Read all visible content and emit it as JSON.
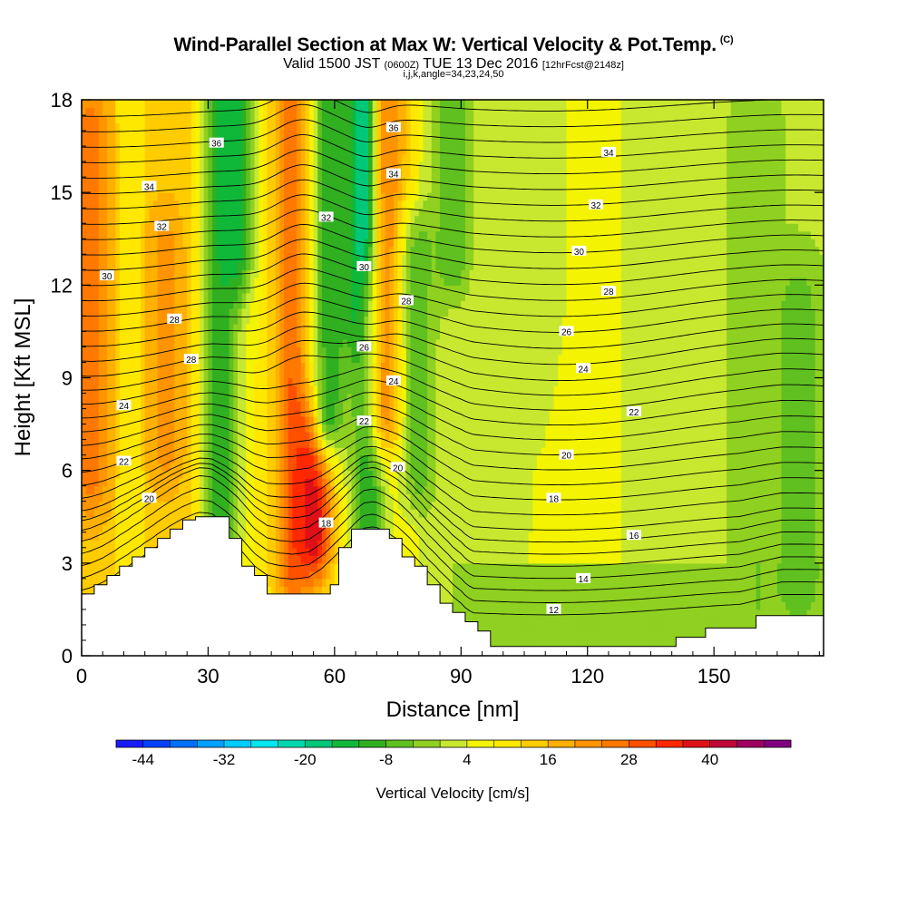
{
  "header": {
    "title": "Wind-Parallel Section at Max W: Vertical Velocity & Pot.Temp.",
    "copyright": "(C)",
    "valid_prefix": "Valid 1500 JST",
    "valid_utc": "(0600Z)",
    "valid_date": "TUE 13 Dec 2016",
    "forecast": "[12hrFcst@2148z]",
    "params": "i,j,k,angle=34,23,24,50"
  },
  "chart_data": {
    "type": "heatmap",
    "title": "Wind-Parallel Section at Max W: Vertical Velocity & Pot.Temp.",
    "xlabel": "Distance [nm]",
    "ylabel": "Height [Kft MSL]",
    "xlim": [
      0,
      176
    ],
    "ylim": [
      0,
      18
    ],
    "x_ticks": [
      0,
      30,
      60,
      90,
      120,
      150
    ],
    "y_ticks": [
      0,
      3,
      6,
      9,
      12,
      15,
      18
    ],
    "colorbar": {
      "label": "Vertical Velocity [cm/s]",
      "min": -48,
      "max": 52,
      "step": 4,
      "tick_labels": [
        -44,
        -32,
        -20,
        -8,
        4,
        16,
        28,
        40
      ],
      "colors": [
        "#1a1aff",
        "#0040ff",
        "#0070ff",
        "#00a0ff",
        "#00ccff",
        "#00e8f0",
        "#00d9b0",
        "#00c878",
        "#10b83a",
        "#30b020",
        "#60c020",
        "#8fd020",
        "#c8e830",
        "#f4f400",
        "#ffe800",
        "#ffcc00",
        "#ffb000",
        "#ff9400",
        "#ff7800",
        "#ff5000",
        "#ff2800",
        "#e01018",
        "#c00838",
        "#a00060",
        "#800080"
      ]
    },
    "velocity_features": [
      {
        "x": 2,
        "z0": 6,
        "z1": 17,
        "w": 26
      },
      {
        "x": 20,
        "z0": 7,
        "z1": 13,
        "w": 22
      },
      {
        "x": 33,
        "z0": 4,
        "z1": 18,
        "w": -10
      },
      {
        "x": 36,
        "z0": 13,
        "z1": 18,
        "w": -14
      },
      {
        "x": 50,
        "z0": 3,
        "z1": 18,
        "w": 28
      },
      {
        "x": 55,
        "z0": 4,
        "z1": 7,
        "w": 40
      },
      {
        "x": 59,
        "z0": 8,
        "z1": 18,
        "w": -10
      },
      {
        "x": 68,
        "z0": 11,
        "z1": 18,
        "w": -30
      },
      {
        "x": 68,
        "z0": 3,
        "z1": 11,
        "w": -12
      },
      {
        "x": 73,
        "z0": 8,
        "z1": 18,
        "w": 24
      },
      {
        "x": 80,
        "z0": 6,
        "z1": 13,
        "w": -6
      },
      {
        "x": 88,
        "z0": 13,
        "z1": 18,
        "w": -8
      },
      {
        "x": 160,
        "z0": 1,
        "z1": 17,
        "w": -4
      },
      {
        "x": 170,
        "z0": 3,
        "z1": 11,
        "w": -8
      }
    ],
    "terrain_top_kft": [
      [
        0,
        2.0
      ],
      [
        3,
        2.0
      ],
      [
        3,
        2.3
      ],
      [
        6,
        2.3
      ],
      [
        6,
        2.6
      ],
      [
        9,
        2.6
      ],
      [
        9,
        2.9
      ],
      [
        12,
        2.9
      ],
      [
        12,
        3.2
      ],
      [
        15,
        3.2
      ],
      [
        15,
        3.5
      ],
      [
        18,
        3.5
      ],
      [
        18,
        3.8
      ],
      [
        21,
        3.8
      ],
      [
        21,
        4.1
      ],
      [
        24,
        4.1
      ],
      [
        24,
        4.4
      ],
      [
        27,
        4.4
      ],
      [
        27,
        4.5
      ],
      [
        35,
        4.5
      ],
      [
        35,
        3.8
      ],
      [
        38,
        3.8
      ],
      [
        38,
        2.9
      ],
      [
        41,
        2.9
      ],
      [
        41,
        2.6
      ],
      [
        44,
        2.6
      ],
      [
        44,
        2.0
      ],
      [
        59,
        2.0
      ],
      [
        59,
        2.3
      ],
      [
        61,
        2.3
      ],
      [
        61,
        3.5
      ],
      [
        64,
        3.5
      ],
      [
        64,
        4.1
      ],
      [
        73,
        4.1
      ],
      [
        73,
        3.8
      ],
      [
        76,
        3.8
      ],
      [
        76,
        3.2
      ],
      [
        79,
        3.2
      ],
      [
        79,
        2.9
      ],
      [
        82,
        2.9
      ],
      [
        82,
        2.3
      ],
      [
        85,
        2.3
      ],
      [
        85,
        1.7
      ],
      [
        88,
        1.7
      ],
      [
        88,
        1.4
      ],
      [
        91,
        1.4
      ],
      [
        91,
        1.1
      ],
      [
        94,
        1.1
      ],
      [
        94,
        0.8
      ],
      [
        97,
        0.8
      ],
      [
        97,
        0.3
      ],
      [
        141,
        0.3
      ],
      [
        141,
        0.6
      ],
      [
        148,
        0.6
      ],
      [
        148,
        0.9
      ],
      [
        160,
        0.9
      ],
      [
        160,
        1.3
      ],
      [
        176,
        1.3
      ]
    ],
    "theta_contours_base_kft": [
      1.2,
      1.6,
      2.0,
      2.4,
      2.8,
      3.2,
      3.6,
      4.0,
      4.5,
      5.0,
      5.5,
      6.0,
      6.5,
      7.0,
      7.5,
      8.0,
      8.5,
      9.0,
      9.5,
      10.0,
      10.5,
      11.0,
      11.5,
      12.0,
      12.5,
      13.0,
      13.5,
      14.0,
      14.5,
      15.0,
      15.5,
      16.0,
      16.5,
      17.0,
      17.5
    ],
    "theta_labels": [
      {
        "text": "36",
        "x": 32,
        "z": 16.6
      },
      {
        "text": "36",
        "x": 74,
        "z": 17.1
      },
      {
        "text": "34",
        "x": 16,
        "z": 15.2
      },
      {
        "text": "34",
        "x": 74,
        "z": 15.6
      },
      {
        "text": "34",
        "x": 125,
        "z": 16.3
      },
      {
        "text": "32",
        "x": 19,
        "z": 13.9
      },
      {
        "text": "32",
        "x": 58,
        "z": 14.2
      },
      {
        "text": "32",
        "x": 122,
        "z": 14.6
      },
      {
        "text": "30",
        "x": 6,
        "z": 12.3
      },
      {
        "text": "30",
        "x": 67,
        "z": 12.6
      },
      {
        "text": "30",
        "x": 118,
        "z": 13.1
      },
      {
        "text": "28",
        "x": 22,
        "z": 10.9
      },
      {
        "text": "28",
        "x": 77,
        "z": 11.5
      },
      {
        "text": "28",
        "x": 125,
        "z": 11.8
      },
      {
        "text": "28",
        "x": 26,
        "z": 9.6
      },
      {
        "text": "26",
        "x": 67,
        "z": 10.0
      },
      {
        "text": "26",
        "x": 115,
        "z": 10.5
      },
      {
        "text": "24",
        "x": 10,
        "z": 8.1
      },
      {
        "text": "24",
        "x": 74,
        "z": 8.9
      },
      {
        "text": "24",
        "x": 119,
        "z": 9.3
      },
      {
        "text": "22",
        "x": 67,
        "z": 7.6
      },
      {
        "text": "22",
        "x": 131,
        "z": 7.9
      },
      {
        "text": "22",
        "x": 10,
        "z": 6.3
      },
      {
        "text": "20",
        "x": 75,
        "z": 6.1
      },
      {
        "text": "20",
        "x": 115,
        "z": 6.5
      },
      {
        "text": "20",
        "x": 16,
        "z": 5.1
      },
      {
        "text": "18",
        "x": 58,
        "z": 4.3
      },
      {
        "text": "18",
        "x": 112,
        "z": 5.1
      },
      {
        "text": "16",
        "x": 131,
        "z": 3.9
      },
      {
        "text": "14",
        "x": 119,
        "z": 2.5
      },
      {
        "text": "12",
        "x": 112,
        "z": 1.5
      }
    ]
  }
}
